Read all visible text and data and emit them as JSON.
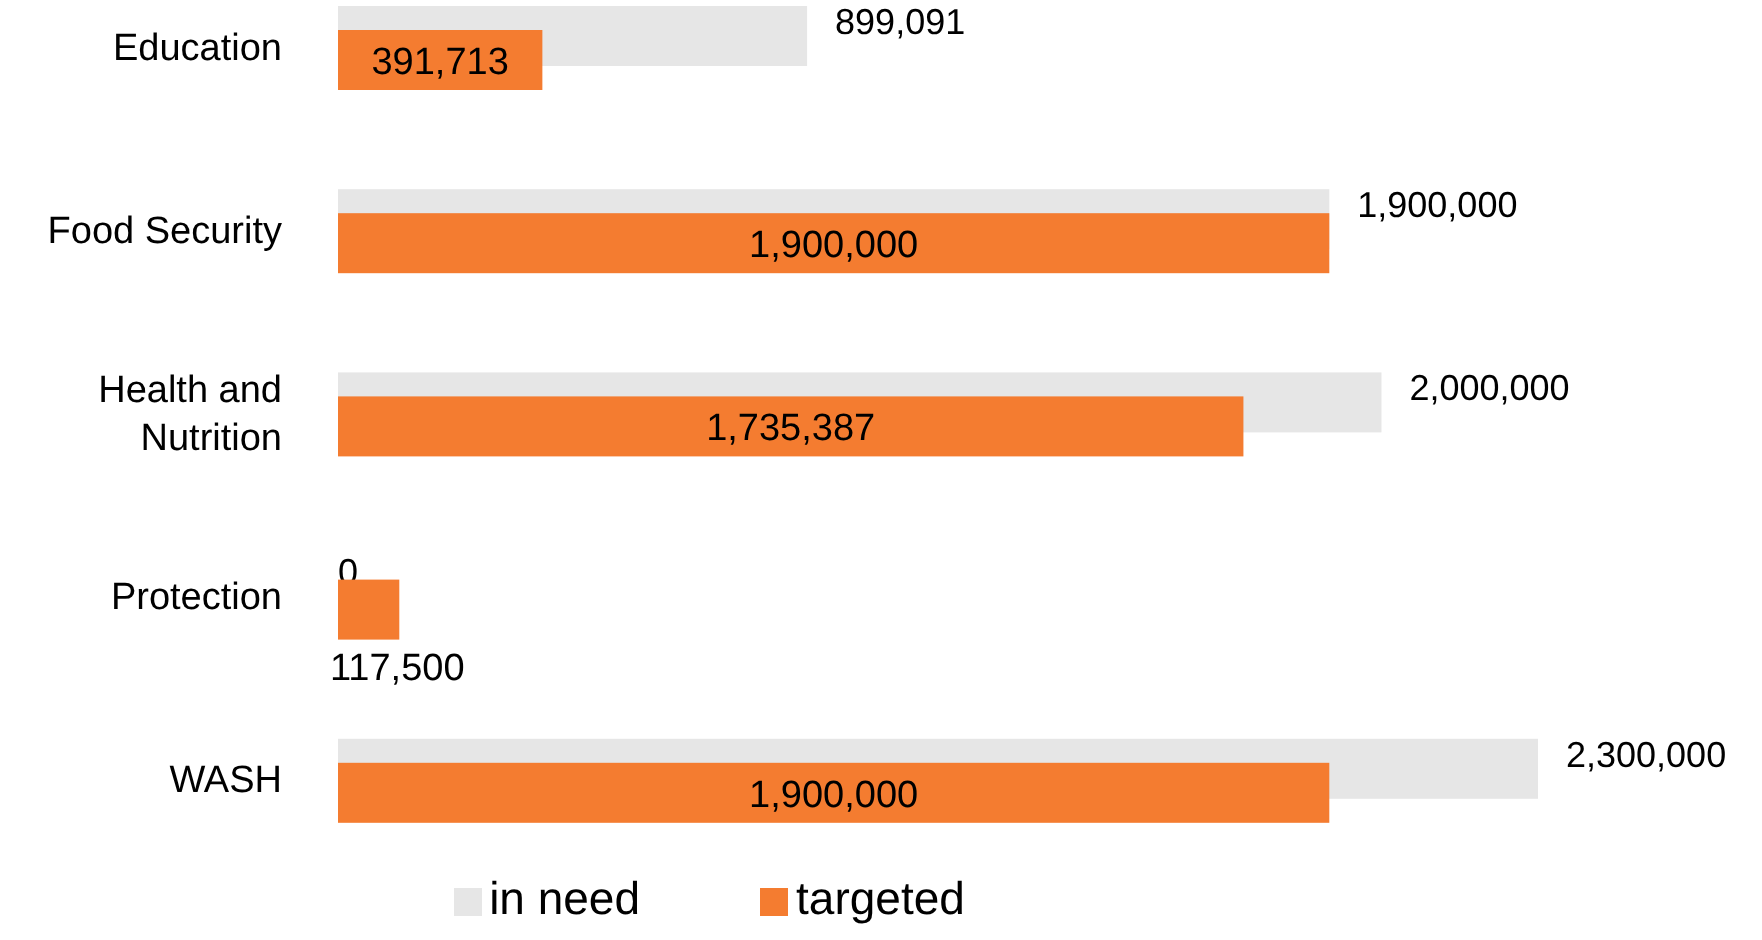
{
  "chart_data": {
    "type": "bar",
    "orientation": "horizontal",
    "categories": [
      "Education",
      "Food Security",
      "Health and Nutrition",
      "Protection",
      "WASH"
    ],
    "series": [
      {
        "name": "in need",
        "color": "#e6e6e6",
        "values": [
          899091,
          1900000,
          2000000,
          0,
          2300000
        ],
        "value_labels": [
          "899,091",
          "1,900,000",
          "2,000,000",
          "0",
          "2,300,000"
        ]
      },
      {
        "name": "targeted",
        "color": "#f47c30",
        "values": [
          391713,
          1900000,
          1735387,
          117500,
          1900000
        ],
        "value_labels": [
          "391,713",
          "1,900,000",
          "1,735,387",
          "117,500",
          "1,900,000"
        ]
      }
    ],
    "legend": "bottom",
    "grid": false
  }
}
